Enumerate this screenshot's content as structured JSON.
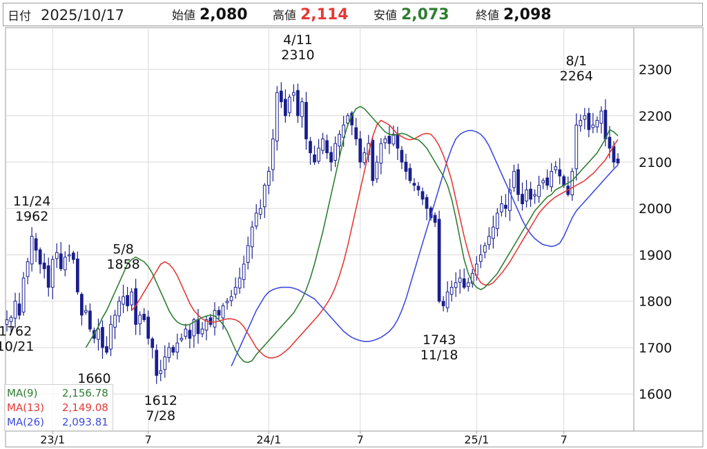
{
  "header": {
    "date_label": "日付",
    "date_value": "2025/10/17",
    "open_label": "始値",
    "open_value": "2,080",
    "high_label": "高値",
    "high_value": "2,114",
    "low_label": "安値",
    "low_value": "2,073",
    "close_label": "終値",
    "close_value": "2,098"
  },
  "colors": {
    "up": "#ffffff",
    "down": "#1a1f8c",
    "wick": "#1a1f8c",
    "ma9": "#2e7d32",
    "ma13": "#e53935",
    "ma26": "#3d4be0",
    "high_value": "#e53935",
    "low_value": "#2e7d32",
    "grid": "#d9d9d9"
  },
  "legend": [
    {
      "name": "MA(9)",
      "value": "2,156.78",
      "color": "#2e7d32"
    },
    {
      "name": "MA(13)",
      "value": "2,149.08",
      "color": "#e53935"
    },
    {
      "name": "MA(26)",
      "value": "2,093.81",
      "color": "#3d4be0"
    }
  ],
  "chart_data": {
    "type": "candlestick",
    "title": "",
    "ylim": [
      1520,
      2390
    ],
    "yticks": [
      1600,
      1700,
      1800,
      1900,
      2000,
      2100,
      2200,
      2300
    ],
    "x_tick_labels": [
      {
        "i": 11,
        "label": "23/1"
      },
      {
        "i": 34,
        "label": "7"
      },
      {
        "i": 63,
        "label": "24/1"
      },
      {
        "i": 85,
        "label": "7"
      },
      {
        "i": 113,
        "label": "25/1"
      },
      {
        "i": 134,
        "label": "7"
      }
    ],
    "grid": true,
    "annotations": [
      {
        "i": 6,
        "price": 1962,
        "date": "11/24",
        "text": "1962",
        "pos": "above"
      },
      {
        "i": 2,
        "price": 1762,
        "date": "10/21",
        "text": "1762",
        "pos": "below"
      },
      {
        "i": 28,
        "price": 1858,
        "date": "5/8",
        "text": "1858",
        "pos": "above"
      },
      {
        "i": 21,
        "price": 1660,
        "date": "",
        "text": "1660",
        "pos": "below"
      },
      {
        "i": 37,
        "price": 1612,
        "date": "7/28",
        "text": "1612",
        "pos": "below"
      },
      {
        "i": 70,
        "price": 2310,
        "date": "4/11",
        "text": "2310",
        "pos": "above"
      },
      {
        "i": 104,
        "price": 1743,
        "date": "11/18",
        "text": "1743",
        "pos": "below"
      },
      {
        "i": 137,
        "price": 2264,
        "date": "8/1",
        "text": "2264",
        "pos": "above"
      }
    ],
    "close": [
      1760,
      1765,
      1800,
      1770,
      1850,
      1885,
      1940,
      1910,
      1880,
      1870,
      1830,
      1890,
      1905,
      1870,
      1895,
      1900,
      1890,
      1820,
      1770,
      1780,
      1740,
      1720,
      1740,
      1700,
      1690,
      1750,
      1770,
      1800,
      1810,
      1790,
      1820,
      1750,
      1770,
      1760,
      1720,
      1700,
      1640,
      1650,
      1680,
      1700,
      1690,
      1710,
      1720,
      1740,
      1720,
      1760,
      1730,
      1740,
      1760,
      1750,
      1780,
      1770,
      1790,
      1800,
      1810,
      1830,
      1850,
      1880,
      1920,
      1960,
      1990,
      2000,
      2050,
      2080,
      2150,
      2250,
      2230,
      2200,
      2240,
      2250,
      2200,
      2230,
      2150,
      2120,
      2100,
      2130,
      2150,
      2120,
      2100,
      2140,
      2160,
      2180,
      2200,
      2180,
      2150,
      2100,
      2120,
      2140,
      2060,
      2100,
      2140,
      2150,
      2140,
      2160,
      2130,
      2100,
      2080,
      2060,
      2050,
      2040,
      2020,
      2000,
      1980,
      1970,
      1800,
      1790,
      1820,
      1830,
      1840,
      1850,
      1830,
      1840,
      1860,
      1880,
      1900,
      1920,
      1940,
      1960,
      1990,
      2010,
      2000,
      2040,
      2080,
      2030,
      2010,
      2040,
      2020,
      2030,
      2050,
      2060,
      2050,
      2080,
      2090,
      2070,
      2050,
      2030,
      2080,
      2180,
      2190,
      2200,
      2170,
      2180,
      2190,
      2210,
      2150,
      2130,
      2100,
      2098
    ],
    "ma9": [
      1700,
      1715,
      1730,
      1745,
      1765,
      1780,
      1800,
      1820,
      1840,
      1860,
      1880,
      1890,
      1895,
      1890,
      1885,
      1875,
      1860,
      1840,
      1820,
      1800,
      1780,
      1765,
      1755,
      1750,
      1748,
      1750,
      1755,
      1760,
      1765,
      1768,
      1770,
      1768,
      1760,
      1750,
      1735,
      1715,
      1695,
      1680,
      1670,
      1668,
      1672,
      1685,
      1695,
      1705,
      1715,
      1725,
      1735,
      1745,
      1755,
      1765,
      1775,
      1790,
      1805,
      1825,
      1850,
      1880,
      1915,
      1950,
      1990,
      2030,
      2070,
      2110,
      2150,
      2180,
      2200,
      2215,
      2220,
      2215,
      2205,
      2195,
      2185,
      2175,
      2165,
      2160,
      2158,
      2160,
      2162,
      2160,
      2155,
      2150,
      2148,
      2140,
      2130,
      2115,
      2100,
      2085,
      2070,
      2050,
      2020,
      1980,
      1935,
      1890,
      1860,
      1840,
      1830,
      1825,
      1830,
      1840,
      1850,
      1860,
      1875,
      1890,
      1905,
      1920,
      1935,
      1950,
      1965,
      1980,
      1995,
      2005,
      2015,
      2025,
      2030,
      2040,
      2045,
      2050,
      2055,
      2060,
      2070,
      2080,
      2090,
      2100,
      2110,
      2120,
      2135,
      2150,
      2170,
      2165,
      2156.78
    ],
    "ma13": [
      1780,
      1790,
      1805,
      1820,
      1835,
      1850,
      1865,
      1880,
      1885,
      1880,
      1870,
      1855,
      1835,
      1815,
      1795,
      1780,
      1770,
      1762,
      1757,
      1755,
      1755,
      1757,
      1760,
      1762,
      1762,
      1760,
      1755,
      1745,
      1730,
      1715,
      1700,
      1690,
      1682,
      1678,
      1678,
      1680,
      1685,
      1692,
      1700,
      1710,
      1720,
      1730,
      1740,
      1750,
      1760,
      1770,
      1782,
      1795,
      1810,
      1830,
      1855,
      1885,
      1920,
      1960,
      2000,
      2040,
      2080,
      2120,
      2155,
      2180,
      2190,
      2185,
      2180,
      2170,
      2160,
      2155,
      2150,
      2148,
      2150,
      2155,
      2160,
      2162,
      2160,
      2150,
      2135,
      2115,
      2090,
      2060,
      2020,
      1980,
      1940,
      1905,
      1875,
      1855,
      1840,
      1835,
      1835,
      1840,
      1850,
      1860,
      1872,
      1885,
      1900,
      1915,
      1930,
      1945,
      1960,
      1975,
      1990,
      2000,
      2010,
      2018,
      2025,
      2030,
      2035,
      2040,
      2045,
      2050,
      2055,
      2060,
      2068,
      2075,
      2085,
      2095,
      2105,
      2120,
      2135,
      2149.08
    ],
    "ma26": [
      1660,
      1680,
      1700,
      1720,
      1740,
      1760,
      1780,
      1795,
      1810,
      1820,
      1825,
      1828,
      1830,
      1830,
      1830,
      1828,
      1825,
      1820,
      1815,
      1810,
      1805,
      1795,
      1785,
      1775,
      1765,
      1755,
      1745,
      1735,
      1728,
      1722,
      1718,
      1715,
      1713,
      1713,
      1715,
      1718,
      1722,
      1728,
      1735,
      1745,
      1760,
      1780,
      1805,
      1835,
      1865,
      1895,
      1925,
      1955,
      1985,
      2015,
      2045,
      2075,
      2105,
      2130,
      2150,
      2160,
      2165,
      2168,
      2168,
      2165,
      2160,
      2150,
      2135,
      2115,
      2095,
      2075,
      2055,
      2035,
      2015,
      1995,
      1975,
      1958,
      1945,
      1935,
      1928,
      1922,
      1920,
      1918,
      1920,
      1925,
      1940,
      1960,
      1980,
      1995,
      2005,
      2015,
      2025,
      2035,
      2045,
      2055,
      2065,
      2075,
      2085,
      2093.81
    ]
  }
}
